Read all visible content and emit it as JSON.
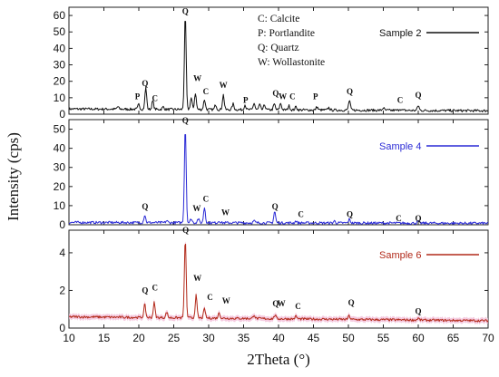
{
  "chart_data": {
    "type": "line",
    "xlabel": "2Theta (°)",
    "ylabel": "Intensity (cps)",
    "xlim": [
      10,
      70
    ],
    "x_ticks": [
      "10",
      "15",
      "20",
      "25",
      "30",
      "35",
      "40",
      "45",
      "50",
      "55",
      "60",
      "65",
      "70"
    ],
    "phase_key": [
      "C: Calcite",
      "P: Portlandite",
      "Q: Quartz",
      "W: Wollastonite"
    ],
    "panels": [
      {
        "series_name": "Sample 2",
        "color": "#111111",
        "band_color": "",
        "ylim": [
          0,
          65
        ],
        "y_ticks": [
          0,
          10,
          20,
          30,
          40,
          50,
          60
        ],
        "baseline": 3.2,
        "peaks": [
          [
            17,
            1.5
          ],
          [
            20,
            3
          ],
          [
            21,
            13
          ],
          [
            22,
            5
          ],
          [
            23.5,
            1.5
          ],
          [
            26.65,
            57
          ],
          [
            27.5,
            7
          ],
          [
            28.1,
            10
          ],
          [
            29.4,
            6
          ],
          [
            31,
            3
          ],
          [
            32.1,
            9
          ],
          [
            33.5,
            3.5
          ],
          [
            35.2,
            3
          ],
          [
            36.5,
            4
          ],
          [
            37.3,
            3
          ],
          [
            38,
            3
          ],
          [
            39.4,
            3.5
          ],
          [
            40.3,
            4
          ],
          [
            41.5,
            2.5
          ],
          [
            42.5,
            2
          ],
          [
            45.5,
            2
          ],
          [
            47.2,
            1.5
          ],
          [
            50.15,
            6
          ],
          [
            55,
            1.5
          ],
          [
            57.4,
            1
          ],
          [
            60,
            3
          ]
        ],
        "labels": [
          {
            "text": "P",
            "x": 19.8,
            "y": 9
          },
          {
            "text": "Q",
            "x": 20.9,
            "y": 17
          },
          {
            "text": "C",
            "x": 22.3,
            "y": 8
          },
          {
            "text": "Q",
            "x": 26.65,
            "y": 61
          },
          {
            "text": "W",
            "x": 28.4,
            "y": 20
          },
          {
            "text": "C",
            "x": 29.6,
            "y": 12
          },
          {
            "text": "W",
            "x": 32.1,
            "y": 16
          },
          {
            "text": "P",
            "x": 35.3,
            "y": 7
          },
          {
            "text": "Q",
            "x": 39.6,
            "y": 11
          },
          {
            "text": "W",
            "x": 40.6,
            "y": 9
          },
          {
            "text": "C",
            "x": 42,
            "y": 9
          },
          {
            "text": "P",
            "x": 45.3,
            "y": 9
          },
          {
            "text": "Q",
            "x": 50.2,
            "y": 12
          },
          {
            "text": "C",
            "x": 57.4,
            "y": 7
          },
          {
            "text": "Q",
            "x": 60,
            "y": 10
          }
        ]
      },
      {
        "series_name": "Sample 4",
        "color": "#2b2bd6",
        "band_color": "",
        "ylim": [
          0,
          55
        ],
        "y_ticks": [
          0,
          10,
          20,
          30,
          40,
          50
        ],
        "baseline": 1.2,
        "peaks": [
          [
            20.85,
            4
          ],
          [
            24,
            1
          ],
          [
            26.65,
            50
          ],
          [
            27.5,
            2
          ],
          [
            28.5,
            2
          ],
          [
            29.4,
            8
          ],
          [
            31.5,
            1
          ],
          [
            36.5,
            1
          ],
          [
            39.45,
            6
          ],
          [
            42.5,
            1
          ],
          [
            48,
            1
          ],
          [
            50.15,
            2
          ],
          [
            60,
            1
          ]
        ],
        "labels": [
          {
            "text": "Q",
            "x": 20.9,
            "y": 8
          },
          {
            "text": "Q",
            "x": 26.65,
            "y": 53
          },
          {
            "text": "W",
            "x": 28.3,
            "y": 7
          },
          {
            "text": "C",
            "x": 29.6,
            "y": 12
          },
          {
            "text": "W",
            "x": 32.4,
            "y": 5
          },
          {
            "text": "Q",
            "x": 39.5,
            "y": 8
          },
          {
            "text": "C",
            "x": 43.2,
            "y": 4
          },
          {
            "text": "Q",
            "x": 50.2,
            "y": 4
          },
          {
            "text": "C",
            "x": 57.2,
            "y": 2
          },
          {
            "text": "Q",
            "x": 60,
            "y": 2
          }
        ]
      },
      {
        "series_name": "Sample 6",
        "color": "#b22a1a",
        "band_color": "#f2b9d6",
        "ylim": [
          0,
          5.2
        ],
        "y_ticks": [
          0,
          2,
          4
        ],
        "baseline": 0.6,
        "peaks": [
          [
            20.85,
            0.7
          ],
          [
            22.2,
            0.8
          ],
          [
            24,
            0.3
          ],
          [
            26.65,
            4.2
          ],
          [
            28.2,
            1.2
          ],
          [
            29.4,
            0.5
          ],
          [
            31.5,
            0.3
          ],
          [
            36.5,
            0.2
          ],
          [
            39.5,
            0.2
          ],
          [
            42.5,
            0.15
          ],
          [
            50.1,
            0.2
          ],
          [
            60,
            0.1
          ]
        ],
        "labels": [
          {
            "text": "Q",
            "x": 20.9,
            "y": 1.85
          },
          {
            "text": "C",
            "x": 22.3,
            "y": 2
          },
          {
            "text": "Q",
            "x": 26.7,
            "y": 5.05
          },
          {
            "text": "W",
            "x": 28.4,
            "y": 2.5
          },
          {
            "text": "C",
            "x": 30.2,
            "y": 1.5
          },
          {
            "text": "W",
            "x": 32.5,
            "y": 1.3
          },
          {
            "text": "Q",
            "x": 39.6,
            "y": 1.15
          },
          {
            "text": "W",
            "x": 40.4,
            "y": 1.15
          },
          {
            "text": "C",
            "x": 42.8,
            "y": 1
          },
          {
            "text": "Q",
            "x": 50.4,
            "y": 1.2
          },
          {
            "text": "Q",
            "x": 60,
            "y": 0.75
          }
        ]
      }
    ]
  }
}
